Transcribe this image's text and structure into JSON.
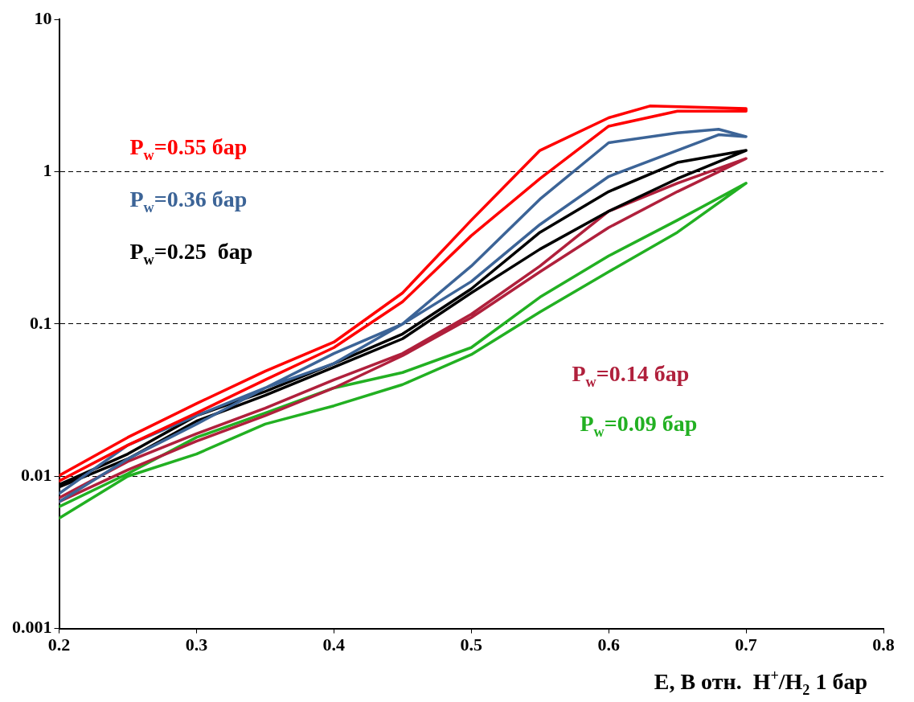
{
  "chart_data": {
    "type": "line",
    "xlabel": "E, В отн.  H$^{+}$/H$_{2}$ 1 бар",
    "log": "y",
    "xlim": [
      0.2,
      0.8
    ],
    "xticks": [
      0.2,
      0.3,
      0.4,
      0.5,
      0.6,
      0.7,
      0.8
    ],
    "ylim": [
      0.001,
      10
    ],
    "yticks": [
      0.001,
      0.01,
      0.1,
      1,
      10
    ],
    "grid": "y",
    "line_style": "solid",
    "marker": "none",
    "legend": false,
    "series": [
      {
        "name": "P$_{w}$=0.55 бар",
        "color": "#ff0000",
        "x": [
          0.2,
          0.25,
          0.3,
          0.35,
          0.4,
          0.45,
          0.5,
          0.55,
          0.6,
          0.63,
          0.7,
          0.7,
          0.65,
          0.6,
          0.55,
          0.5,
          0.45,
          0.4,
          0.35,
          0.3,
          0.25,
          0.2
        ],
        "values": [
          0.0101,
          0.018,
          0.03,
          0.049,
          0.076,
          0.16,
          0.48,
          1.38,
          2.26,
          2.7,
          2.6,
          2.5,
          2.5,
          1.99,
          0.9,
          0.38,
          0.14,
          0.07,
          0.043,
          0.026,
          0.016,
          0.0093
        ]
      },
      {
        "name": "P$_{w}$=0.36 бар",
        "color": "#3c6497",
        "x": [
          0.2,
          0.25,
          0.3,
          0.35,
          0.4,
          0.45,
          0.5,
          0.55,
          0.6,
          0.65,
          0.68,
          0.7,
          0.68,
          0.6,
          0.55,
          0.5,
          0.45,
          0.4,
          0.35,
          0.3,
          0.25,
          0.2
        ],
        "values": [
          0.0077,
          0.016,
          0.025,
          0.038,
          0.064,
          0.1,
          0.24,
          0.66,
          1.55,
          1.8,
          1.9,
          1.7,
          1.75,
          0.93,
          0.45,
          0.19,
          0.1,
          0.055,
          0.038,
          0.022,
          0.013,
          0.0068
        ]
      },
      {
        "name": "P$_{w}$=0.25  бар",
        "color": "#000000",
        "x": [
          0.2,
          0.25,
          0.3,
          0.35,
          0.4,
          0.45,
          0.5,
          0.55,
          0.6,
          0.65,
          0.7,
          0.65,
          0.6,
          0.55,
          0.5,
          0.45,
          0.4,
          0.35,
          0.3,
          0.25,
          0.2
        ],
        "values": [
          0.0088,
          0.014,
          0.025,
          0.036,
          0.055,
          0.086,
          0.17,
          0.4,
          0.74,
          1.15,
          1.38,
          0.9,
          0.55,
          0.31,
          0.16,
          0.08,
          0.052,
          0.034,
          0.023,
          0.013,
          0.0085
        ]
      },
      {
        "name": "P$_{w}$=0.14 бар",
        "color": "#b0203c",
        "x": [
          0.2,
          0.25,
          0.3,
          0.35,
          0.4,
          0.45,
          0.5,
          0.55,
          0.6,
          0.65,
          0.7,
          0.65,
          0.6,
          0.55,
          0.5,
          0.45,
          0.4,
          0.35,
          0.3,
          0.25,
          0.2
        ],
        "values": [
          0.0072,
          0.0125,
          0.019,
          0.028,
          0.043,
          0.064,
          0.116,
          0.24,
          0.55,
          0.84,
          1.22,
          0.74,
          0.43,
          0.22,
          0.11,
          0.062,
          0.038,
          0.025,
          0.017,
          0.011,
          0.0068
        ]
      },
      {
        "name": "P$_{w}$=0.09 бар",
        "color": "#22b022",
        "x": [
          0.2,
          0.25,
          0.3,
          0.35,
          0.4,
          0.45,
          0.5,
          0.55,
          0.6,
          0.65,
          0.7,
          0.65,
          0.6,
          0.55,
          0.5,
          0.45,
          0.4,
          0.35,
          0.3,
          0.25,
          0.2
        ],
        "values": [
          0.0063,
          0.0104,
          0.018,
          0.026,
          0.038,
          0.048,
          0.07,
          0.15,
          0.28,
          0.48,
          0.84,
          0.4,
          0.22,
          0.12,
          0.063,
          0.04,
          0.029,
          0.022,
          0.014,
          0.01,
          0.0053
        ]
      }
    ]
  }
}
